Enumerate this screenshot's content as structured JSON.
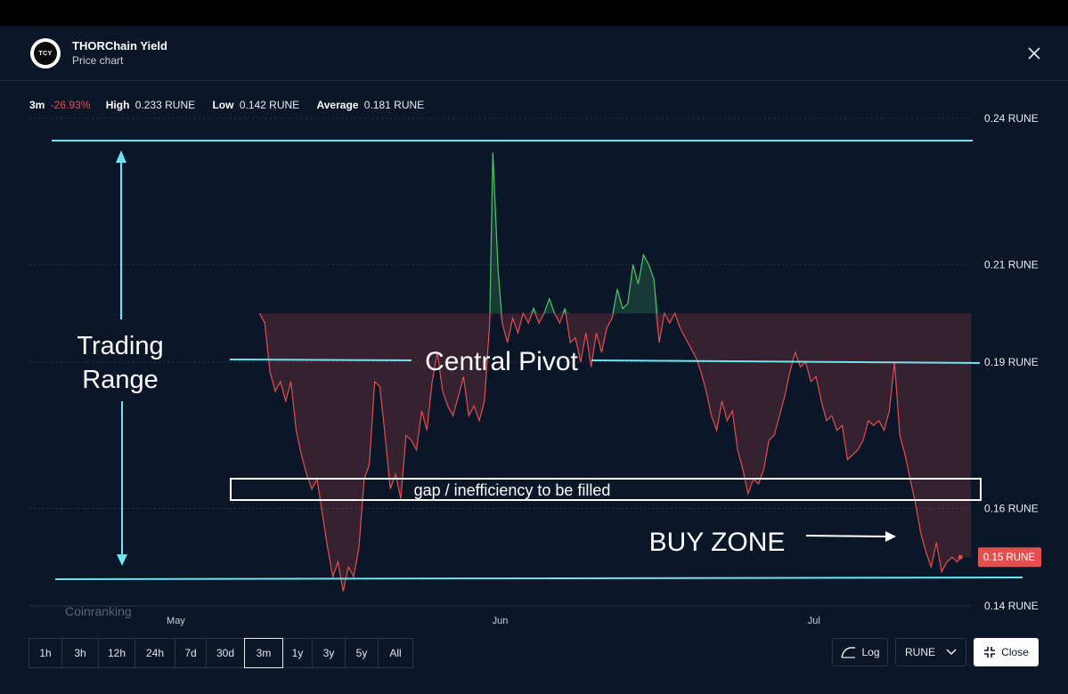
{
  "header": {
    "logo_text": "TCY",
    "title": "THORChain Yield",
    "subtitle": "Price chart"
  },
  "stats": {
    "period": "3m",
    "change": "-26.93%",
    "high_label": "High",
    "high_value": "0.233 RUNE",
    "low_label": "Low",
    "low_value": "0.142 RUNE",
    "avg_label": "Average",
    "avg_value": "0.181 RUNE"
  },
  "timeframes": [
    "1h",
    "3h",
    "12h",
    "24h",
    "7d",
    "30d",
    "3m",
    "1y",
    "3y",
    "5y",
    "All"
  ],
  "active_timeframe": "3m",
  "controls": {
    "log_label": "Log",
    "currency_label": "RUNE",
    "close_label": "Close"
  },
  "watermark": "Coinranking",
  "current_price_label": "0.15 RUNE",
  "annotations": {
    "trading_range_line1": "Trading",
    "trading_range_line2": "Range",
    "central_pivot": "Central Pivot",
    "gap": "gap / inefficiency to be filled",
    "buy_zone": "BUY ZONE"
  },
  "colors": {
    "background": "#0c1629",
    "line_down": "#e0504e",
    "line_up": "#4cc768",
    "annotation": "#6fe3f0",
    "price_badge": "#e0504e"
  },
  "chart_data": {
    "type": "line",
    "title": "",
    "xlabel": "",
    "ylabel": "",
    "ylim": [
      0.14,
      0.24
    ],
    "yticks": [
      {
        "value": 0.24,
        "label": "0.24 RUNE"
      },
      {
        "value": 0.21,
        "label": "0.21 RUNE"
      },
      {
        "value": 0.19,
        "label": "0.19 RUNE"
      },
      {
        "value": 0.16,
        "label": "0.16 RUNE"
      },
      {
        "value": 0.14,
        "label": "0.14 RUNE"
      }
    ],
    "xticks": [
      {
        "day": 0,
        "label": "May"
      },
      {
        "day": 31,
        "label": "Jun"
      },
      {
        "day": 61,
        "label": "Jul"
      }
    ],
    "xlim": [
      -14,
      76
    ],
    "reference_price": 0.2,
    "series": [
      {
        "values": [
          [
            8,
            0.2
          ],
          [
            8.5,
            0.198
          ],
          [
            9,
            0.188
          ],
          [
            9.5,
            0.184
          ],
          [
            10,
            0.186
          ],
          [
            10.5,
            0.182
          ],
          [
            11,
            0.186
          ],
          [
            11.5,
            0.176
          ],
          [
            12,
            0.171
          ],
          [
            12.5,
            0.167
          ],
          [
            13,
            0.164
          ],
          [
            13.5,
            0.166
          ],
          [
            14,
            0.159
          ],
          [
            14.5,
            0.152
          ],
          [
            15,
            0.146
          ],
          [
            15.5,
            0.149
          ],
          [
            16,
            0.143
          ],
          [
            16.5,
            0.148
          ],
          [
            17,
            0.146
          ],
          [
            17.5,
            0.152
          ],
          [
            18,
            0.166
          ],
          [
            18.5,
            0.169
          ],
          [
            19,
            0.186
          ],
          [
            19.5,
            0.185
          ],
          [
            20,
            0.175
          ],
          [
            20.5,
            0.164
          ],
          [
            21,
            0.167
          ],
          [
            21.5,
            0.162
          ],
          [
            22,
            0.175
          ],
          [
            22.5,
            0.174
          ],
          [
            23,
            0.172
          ],
          [
            23.5,
            0.18
          ],
          [
            24,
            0.176
          ],
          [
            24.5,
            0.186
          ],
          [
            25,
            0.192
          ],
          [
            25.5,
            0.184
          ],
          [
            26,
            0.181
          ],
          [
            26.5,
            0.179
          ],
          [
            27,
            0.183
          ],
          [
            27.5,
            0.187
          ],
          [
            28,
            0.179
          ],
          [
            28.5,
            0.181
          ],
          [
            29,
            0.178
          ],
          [
            29.5,
            0.182
          ],
          [
            30,
            0.198
          ],
          [
            30.3,
            0.233
          ],
          [
            30.8,
            0.209
          ],
          [
            31.2,
            0.198
          ],
          [
            31.7,
            0.194
          ],
          [
            32.2,
            0.199
          ],
          [
            32.7,
            0.196
          ],
          [
            33.2,
            0.2
          ],
          [
            33.7,
            0.198
          ],
          [
            34.2,
            0.201
          ],
          [
            34.7,
            0.198
          ],
          [
            35.2,
            0.2
          ],
          [
            35.7,
            0.203
          ],
          [
            36.2,
            0.2
          ],
          [
            36.7,
            0.198
          ],
          [
            37.2,
            0.201
          ],
          [
            37.7,
            0.194
          ],
          [
            38.2,
            0.195
          ],
          [
            38.7,
            0.19
          ],
          [
            39.2,
            0.196
          ],
          [
            39.7,
            0.189
          ],
          [
            40.2,
            0.196
          ],
          [
            40.7,
            0.192
          ],
          [
            41.2,
            0.197
          ],
          [
            41.7,
            0.199
          ],
          [
            42.2,
            0.205
          ],
          [
            42.7,
            0.201
          ],
          [
            43.2,
            0.202
          ],
          [
            43.7,
            0.21
          ],
          [
            44.2,
            0.206
          ],
          [
            44.7,
            0.212
          ],
          [
            45.2,
            0.21
          ],
          [
            45.7,
            0.207
          ],
          [
            46.2,
            0.194
          ],
          [
            46.7,
            0.2
          ],
          [
            47.2,
            0.198
          ],
          [
            47.7,
            0.2
          ],
          [
            48.2,
            0.197
          ],
          [
            48.7,
            0.195
          ],
          [
            49.2,
            0.193
          ],
          [
            49.7,
            0.191
          ],
          [
            50.2,
            0.188
          ],
          [
            50.7,
            0.184
          ],
          [
            51.2,
            0.179
          ],
          [
            51.7,
            0.176
          ],
          [
            52.2,
            0.182
          ],
          [
            52.7,
            0.178
          ],
          [
            53.2,
            0.18
          ],
          [
            53.7,
            0.172
          ],
          [
            54.2,
            0.168
          ],
          [
            54.7,
            0.163
          ],
          [
            55.2,
            0.166
          ],
          [
            55.7,
            0.165
          ],
          [
            56.2,
            0.168
          ],
          [
            56.7,
            0.174
          ],
          [
            57.2,
            0.175
          ],
          [
            57.7,
            0.179
          ],
          [
            58.2,
            0.183
          ],
          [
            58.7,
            0.188
          ],
          [
            59.2,
            0.192
          ],
          [
            59.7,
            0.189
          ],
          [
            60.2,
            0.19
          ],
          [
            60.7,
            0.186
          ],
          [
            61.2,
            0.187
          ],
          [
            61.7,
            0.182
          ],
          [
            62.2,
            0.178
          ],
          [
            62.7,
            0.179
          ],
          [
            63.2,
            0.176
          ],
          [
            63.7,
            0.177
          ],
          [
            64.2,
            0.17
          ],
          [
            64.7,
            0.171
          ],
          [
            65.2,
            0.172
          ],
          [
            65.7,
            0.174
          ],
          [
            66.2,
            0.178
          ],
          [
            66.7,
            0.177
          ],
          [
            67.2,
            0.178
          ],
          [
            67.7,
            0.176
          ],
          [
            68.2,
            0.18
          ],
          [
            68.7,
            0.19
          ],
          [
            69.2,
            0.175
          ],
          [
            69.7,
            0.171
          ],
          [
            70.2,
            0.166
          ],
          [
            70.7,
            0.161
          ],
          [
            71.2,
            0.155
          ],
          [
            71.7,
            0.151
          ],
          [
            72.2,
            0.148
          ],
          [
            72.7,
            0.153
          ],
          [
            73.2,
            0.147
          ],
          [
            73.7,
            0.149
          ],
          [
            74.2,
            0.15
          ],
          [
            74.7,
            0.149
          ],
          [
            75,
            0.15
          ]
        ]
      }
    ]
  }
}
